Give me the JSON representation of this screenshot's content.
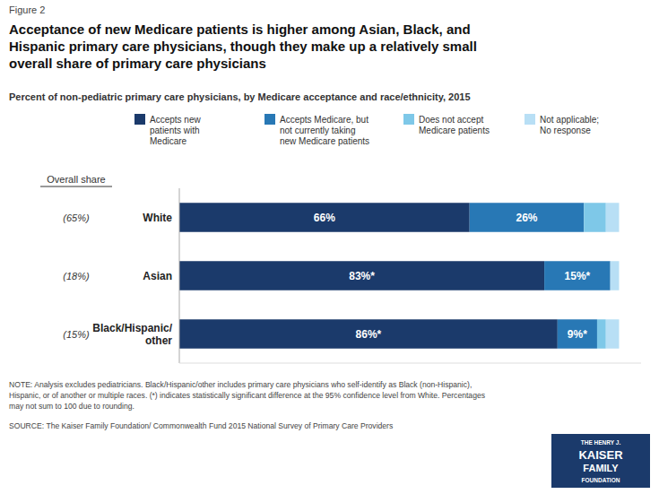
{
  "chart_data": {
    "type": "bar",
    "orientation": "horizontal",
    "stacked": true,
    "data_labels": true,
    "grid": false,
    "tick_labels": "y",
    "figure_label": "Figure 2",
    "title": "Acceptance of new Medicare patients is higher among Asian, Black, and\nHispanic primary care physicians, though they make up a relatively small\noverall share of primary care physicians",
    "subtitle": "Percent of non-pediatric primary care physicians, by Medicare acceptance and race/ethnicity, 2015",
    "categories": [
      "White",
      "Asian",
      "Black/Hispanic/\nother"
    ],
    "xlim": [
      0,
      105
    ],
    "series": [
      {
        "name": "Accepts new\npatients with\nMedicare",
        "color": "#1b3a6b",
        "values": [
          66,
          83,
          86
        ],
        "value_labels": [
          "66%",
          "83%*",
          "86%*"
        ]
      },
      {
        "name": "Accepts Medicare, but\nnot currently taking\nnew Medicare patients",
        "color": "#2878b5",
        "values": [
          26,
          15,
          9
        ],
        "value_labels": [
          "26%",
          "15%*",
          "9%*"
        ]
      },
      {
        "name": "Does not accept\nMedicare patients",
        "color": "#7ec8e8",
        "values": [
          5,
          0,
          2
        ]
      },
      {
        "name": "Not applicable;\nNo response",
        "color": "#b8dff5",
        "values": [
          3,
          2,
          3
        ]
      }
    ],
    "overall_share": {
      "label": "Overall share",
      "labels": [
        "(65%)",
        "(18%)",
        "(15%)"
      ]
    },
    "notes": [
      "NOTE: Analysis excludes pediatricians.  Black/Hispanic/other includes primary care physicians who self-identify as Black (non-Hispanic),",
      "Hispanic, or of another or multiple races.  (*) indicates statistically significant difference at the 95% confidence level from White. Percentages",
      "may not sum to 100 due to rounding."
    ],
    "source": "SOURCE: The Kaiser Family Foundation/ Commonwealth Fund 2015 National Survey of Primary Care Providers",
    "logo": [
      "THE HENRY J.",
      "KAISER",
      "FAMILY",
      "FOUNDATION"
    ]
  }
}
